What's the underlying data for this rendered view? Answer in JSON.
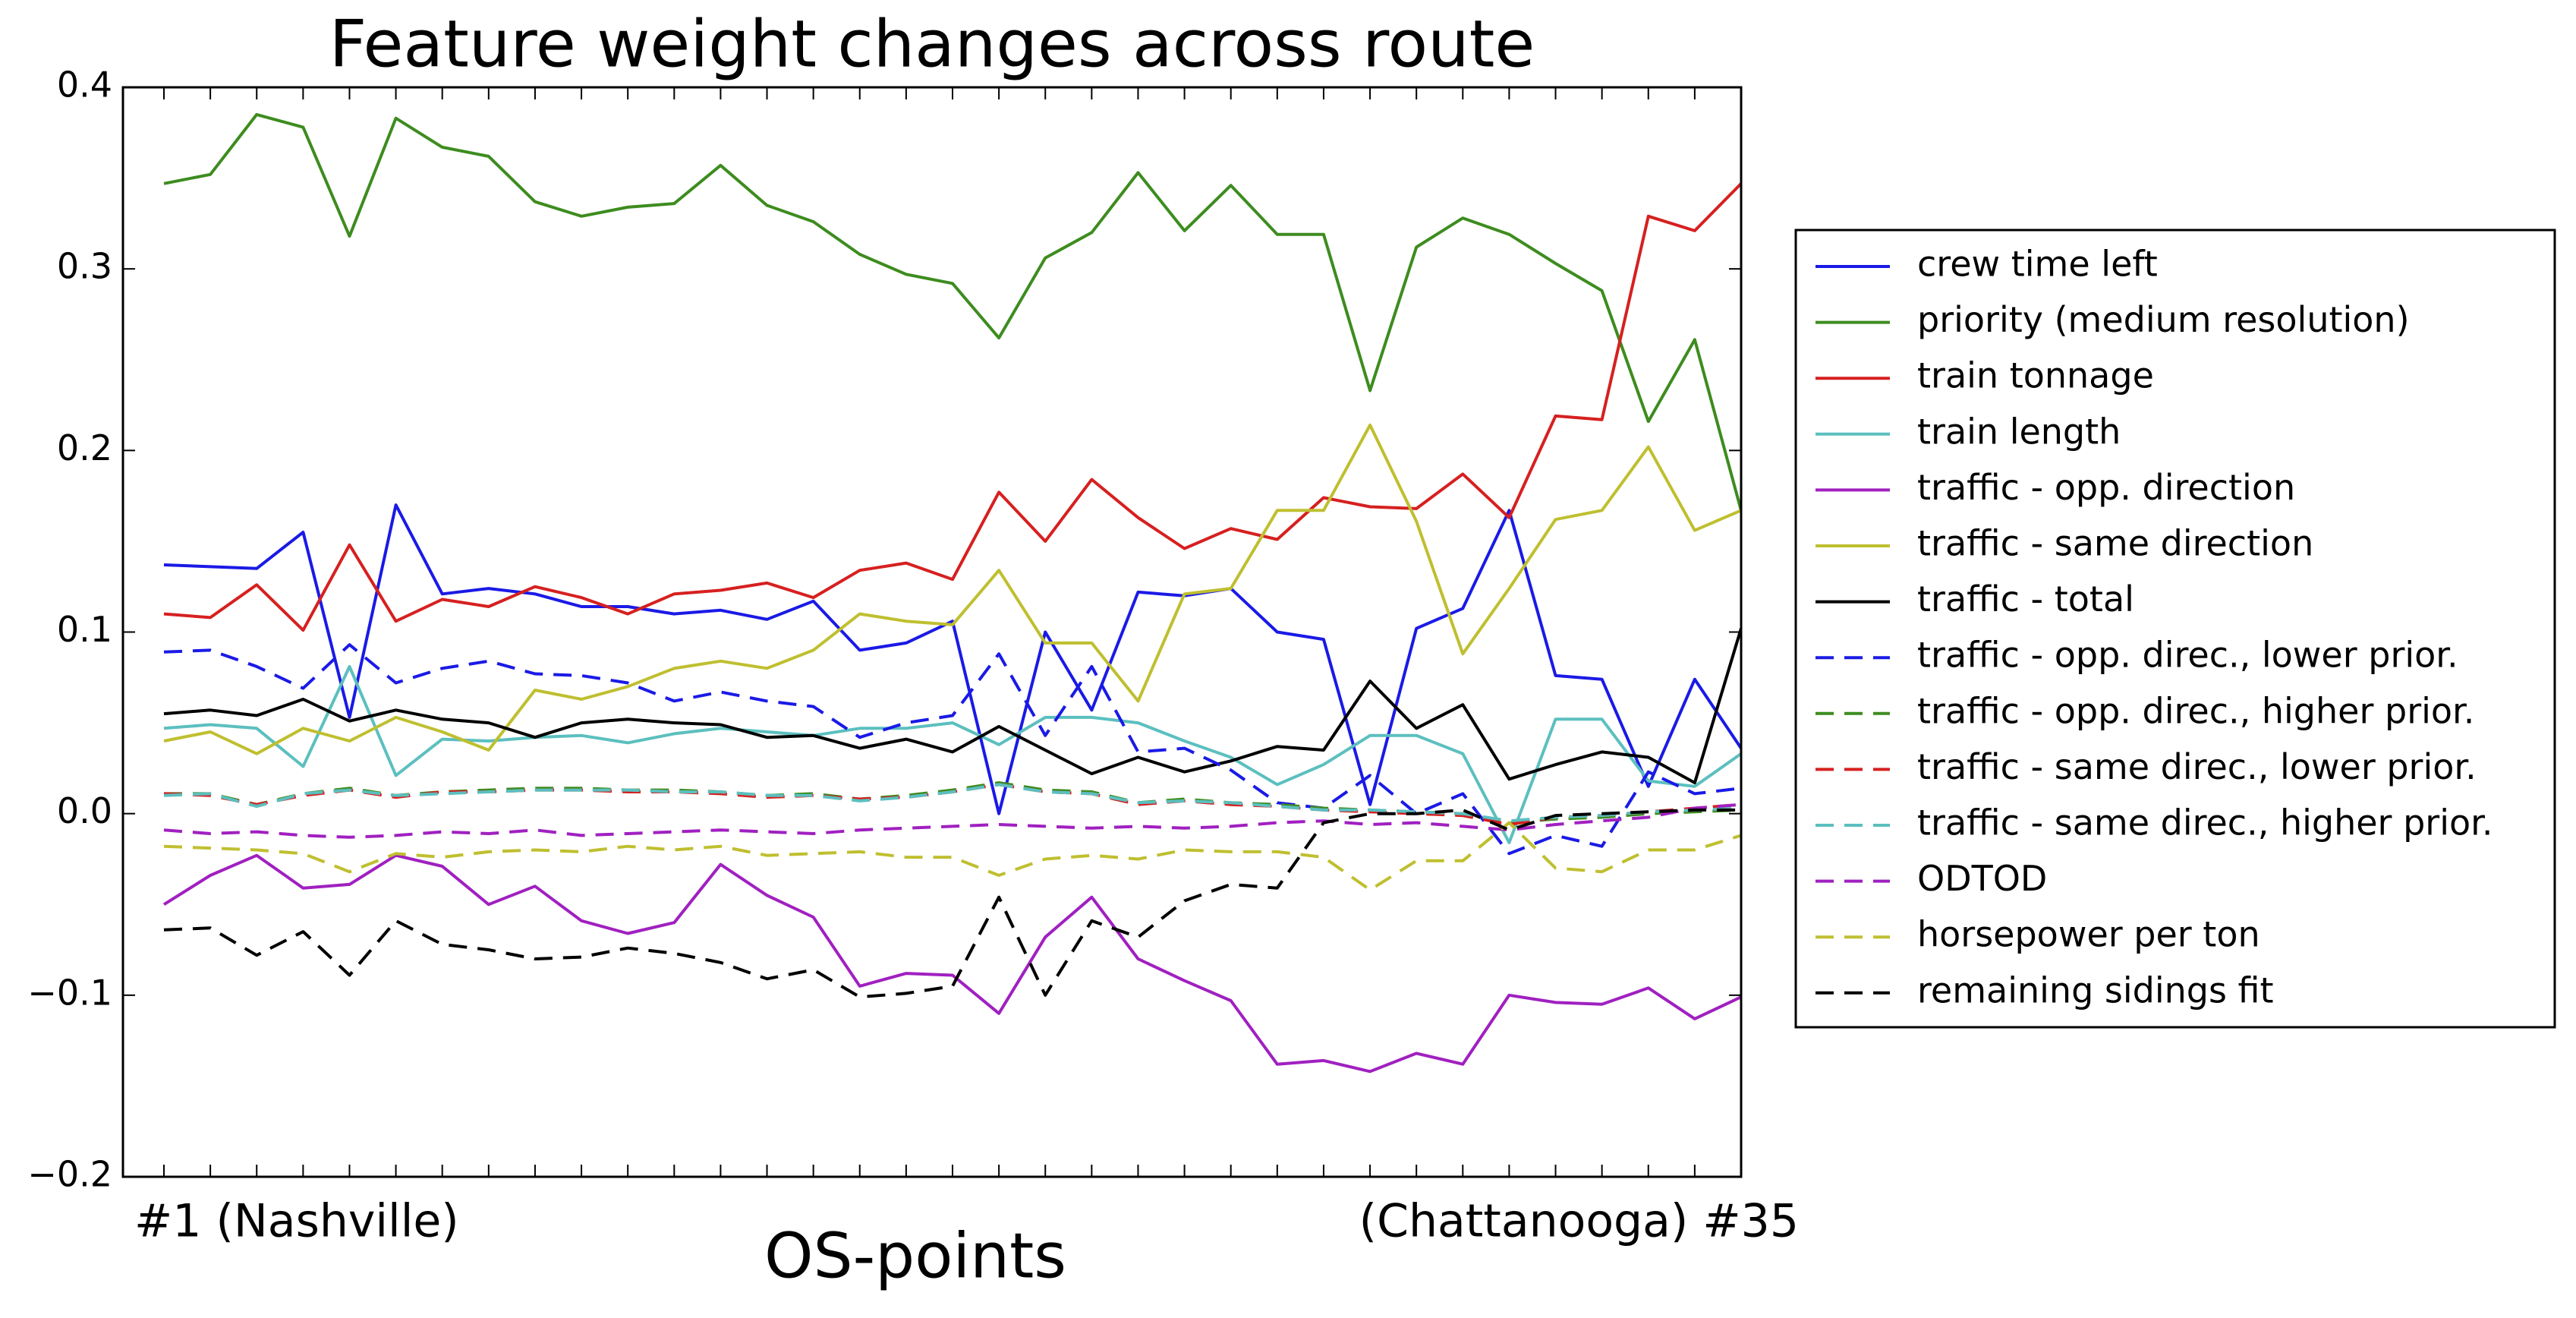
{
  "chart_data": {
    "type": "line",
    "title": "Feature weight changes across route",
    "x_label": "OS-points",
    "categories": [
      "#1 (Nashville)",
      null,
      null,
      null,
      null,
      null,
      null,
      null,
      null,
      null,
      null,
      null,
      null,
      null,
      null,
      null,
      null,
      null,
      null,
      null,
      null,
      null,
      null,
      null,
      null,
      null,
      null,
      null,
      null,
      null,
      null,
      null,
      null,
      null,
      "(Chattanooga) #35"
    ],
    "ylim": [
      -0.2,
      0.4
    ],
    "yticks": [
      {
        "value": -0.2,
        "label": "−0.2"
      },
      {
        "value": -0.1,
        "label": "−0.1"
      },
      {
        "value": 0,
        "label": "0.0"
      },
      0.1,
      0.2,
      0.3,
      0.4
    ],
    "legend": "outside right",
    "series": [
      {
        "name": "crew time left",
        "color": "#1a1ae6",
        "dashed": false,
        "values": [
          0.137,
          0.136,
          0.135,
          0.155,
          0.053,
          0.17,
          0.121,
          0.124,
          0.121,
          0.114,
          0.114,
          0.11,
          0.112,
          0.107,
          0.117,
          0.09,
          0.094,
          0.106,
          0.0,
          0.1,
          0.057,
          0.122,
          0.12,
          0.124,
          0.1,
          0.096,
          0.005,
          0.102,
          0.113,
          0.167,
          0.076,
          0.074,
          0.015,
          0.074,
          0.036
        ]
      },
      {
        "name": "priority (medium resolution)",
        "color": "#3d8c1f",
        "dashed": false,
        "values": [
          0.347,
          0.352,
          0.385,
          0.378,
          0.318,
          0.383,
          0.367,
          0.362,
          0.337,
          0.329,
          0.334,
          0.336,
          0.357,
          0.335,
          0.326,
          0.308,
          0.297,
          0.292,
          0.262,
          0.306,
          0.32,
          0.353,
          0.321,
          0.346,
          0.319,
          0.319,
          0.233,
          0.312,
          0.328,
          0.319,
          0.303,
          0.288,
          0.216,
          0.261,
          0.167
        ]
      },
      {
        "name": "train tonnage",
        "color": "#d62020",
        "dashed": false,
        "values": [
          0.11,
          0.108,
          0.126,
          0.101,
          0.148,
          0.106,
          0.118,
          0.114,
          0.125,
          0.119,
          0.11,
          0.121,
          0.123,
          0.127,
          0.119,
          0.134,
          0.138,
          0.129,
          0.177,
          0.15,
          0.184,
          0.163,
          0.146,
          0.157,
          0.151,
          0.174,
          0.169,
          0.168,
          0.187,
          0.163,
          0.219,
          0.217,
          0.329,
          0.321,
          0.347
        ]
      },
      {
        "name": "train length",
        "color": "#5cbfbf",
        "dashed": false,
        "values": [
          0.047,
          0.049,
          0.047,
          0.026,
          0.081,
          0.021,
          0.041,
          0.04,
          0.042,
          0.043,
          0.039,
          0.044,
          0.047,
          0.045,
          0.043,
          0.047,
          0.047,
          0.05,
          0.038,
          0.053,
          0.053,
          0.05,
          0.04,
          0.031,
          0.016,
          0.027,
          0.043,
          0.043,
          0.033,
          -0.016,
          0.052,
          0.052,
          0.018,
          0.015,
          0.033
        ]
      },
      {
        "name": "traffic - opp. direction",
        "color": "#a020c0",
        "dashed": false,
        "values": [
          -0.05,
          -0.034,
          -0.023,
          -0.041,
          -0.039,
          -0.023,
          -0.029,
          -0.05,
          -0.04,
          -0.059,
          -0.066,
          -0.06,
          -0.028,
          -0.045,
          -0.057,
          -0.095,
          -0.088,
          -0.089,
          -0.11,
          -0.068,
          -0.046,
          -0.08,
          -0.092,
          -0.103,
          -0.138,
          -0.136,
          -0.142,
          -0.132,
          -0.138,
          -0.1,
          -0.104,
          -0.105,
          -0.096,
          -0.113,
          -0.101
        ]
      },
      {
        "name": "traffic - same direction",
        "color": "#bfbf30",
        "dashed": false,
        "values": [
          0.04,
          0.045,
          0.033,
          0.047,
          0.04,
          0.053,
          0.045,
          0.035,
          0.068,
          0.063,
          0.07,
          0.08,
          0.084,
          0.08,
          0.09,
          0.11,
          0.106,
          0.104,
          0.134,
          0.094,
          0.094,
          0.062,
          0.121,
          0.124,
          0.167,
          0.167,
          0.214,
          0.161,
          0.088,
          0.124,
          0.162,
          0.167,
          0.202,
          0.156,
          0.167
        ]
      },
      {
        "name": "traffic - total",
        "color": "#000000",
        "dashed": false,
        "values": [
          0.055,
          0.057,
          0.054,
          0.063,
          0.051,
          0.057,
          0.052,
          0.05,
          0.042,
          0.05,
          0.052,
          0.05,
          0.049,
          0.042,
          0.043,
          0.036,
          0.041,
          0.034,
          0.048,
          0.035,
          0.022,
          0.031,
          0.023,
          0.029,
          0.037,
          0.035,
          0.073,
          0.047,
          0.06,
          0.019,
          0.027,
          0.034,
          0.031,
          0.017,
          0.102
        ]
      },
      {
        "name": "traffic - opp. direc., lower prior.",
        "color": "#1a1ae6",
        "dashed": true,
        "values": [
          0.089,
          0.09,
          0.081,
          0.069,
          0.093,
          0.072,
          0.08,
          0.084,
          0.077,
          0.076,
          0.072,
          0.062,
          0.067,
          0.062,
          0.059,
          0.042,
          0.05,
          0.054,
          0.088,
          0.043,
          0.081,
          0.034,
          0.036,
          0.024,
          0.006,
          0.003,
          0.021,
          0.0,
          0.011,
          -0.022,
          -0.012,
          -0.018,
          0.023,
          0.011,
          0.014
        ]
      },
      {
        "name": "traffic - opp. direc., higher prior.",
        "color": "#3d8c1f",
        "dashed": true,
        "values": [
          0.011,
          0.011,
          0.005,
          0.011,
          0.014,
          0.01,
          0.012,
          0.013,
          0.014,
          0.014,
          0.013,
          0.013,
          0.012,
          0.01,
          0.011,
          0.008,
          0.01,
          0.013,
          0.017,
          0.013,
          0.012,
          0.006,
          0.008,
          0.006,
          0.005,
          0.003,
          0.002,
          0.001,
          0.0,
          -0.005,
          -0.003,
          -0.002,
          0.0,
          0.001,
          0.002
        ]
      },
      {
        "name": "traffic - same direc., lower prior.",
        "color": "#d62020",
        "dashed": true,
        "values": [
          0.011,
          0.01,
          0.005,
          0.01,
          0.013,
          0.009,
          0.012,
          0.012,
          0.013,
          0.013,
          0.012,
          0.012,
          0.011,
          0.009,
          0.01,
          0.008,
          0.009,
          0.012,
          0.016,
          0.012,
          0.011,
          0.005,
          0.007,
          0.005,
          0.004,
          0.002,
          0.001,
          0.0,
          -0.001,
          -0.006,
          -0.002,
          -0.001,
          0.001,
          0.003,
          0.005
        ]
      },
      {
        "name": "traffic - same direc., higher prior.",
        "color": "#5cbfbf",
        "dashed": true,
        "values": [
          0.01,
          0.011,
          0.004,
          0.011,
          0.013,
          0.01,
          0.011,
          0.012,
          0.013,
          0.013,
          0.013,
          0.012,
          0.012,
          0.01,
          0.01,
          0.007,
          0.009,
          0.012,
          0.016,
          0.012,
          0.011,
          0.006,
          0.007,
          0.006,
          0.004,
          0.002,
          0.002,
          0.001,
          0.0,
          -0.004,
          -0.002,
          -0.001,
          0.001,
          0.002,
          0.003
        ]
      },
      {
        "name": "ODTOD",
        "color": "#a020c0",
        "dashed": true,
        "values": [
          -0.009,
          -0.011,
          -0.01,
          -0.012,
          -0.013,
          -0.012,
          -0.01,
          -0.011,
          -0.009,
          -0.012,
          -0.011,
          -0.01,
          -0.009,
          -0.01,
          -0.011,
          -0.009,
          -0.008,
          -0.007,
          -0.006,
          -0.007,
          -0.008,
          -0.007,
          -0.008,
          -0.007,
          -0.005,
          -0.004,
          -0.006,
          -0.005,
          -0.007,
          -0.009,
          -0.006,
          -0.004,
          -0.002,
          0.003,
          0.005
        ]
      },
      {
        "name": "horsepower per ton",
        "color": "#bfbf30",
        "dashed": true,
        "values": [
          -0.018,
          -0.019,
          -0.02,
          -0.022,
          -0.032,
          -0.022,
          -0.024,
          -0.021,
          -0.02,
          -0.021,
          -0.018,
          -0.02,
          -0.018,
          -0.023,
          -0.022,
          -0.021,
          -0.024,
          -0.024,
          -0.034,
          -0.025,
          -0.023,
          -0.025,
          -0.02,
          -0.021,
          -0.021,
          -0.024,
          -0.042,
          -0.026,
          -0.026,
          -0.005,
          -0.03,
          -0.032,
          -0.02,
          -0.02,
          -0.012
        ]
      },
      {
        "name": "remaining sidings fit",
        "color": "#000000",
        "dashed": true,
        "values": [
          -0.064,
          -0.063,
          -0.078,
          -0.065,
          -0.089,
          -0.059,
          -0.072,
          -0.075,
          -0.08,
          -0.079,
          -0.074,
          -0.077,
          -0.082,
          -0.091,
          -0.086,
          -0.101,
          -0.099,
          -0.095,
          -0.046,
          -0.1,
          -0.059,
          -0.068,
          -0.048,
          -0.039,
          -0.041,
          -0.005,
          0.0,
          0.0,
          0.002,
          -0.009,
          -0.001,
          0.0,
          0.001,
          0.002,
          0.002
        ]
      }
    ]
  }
}
